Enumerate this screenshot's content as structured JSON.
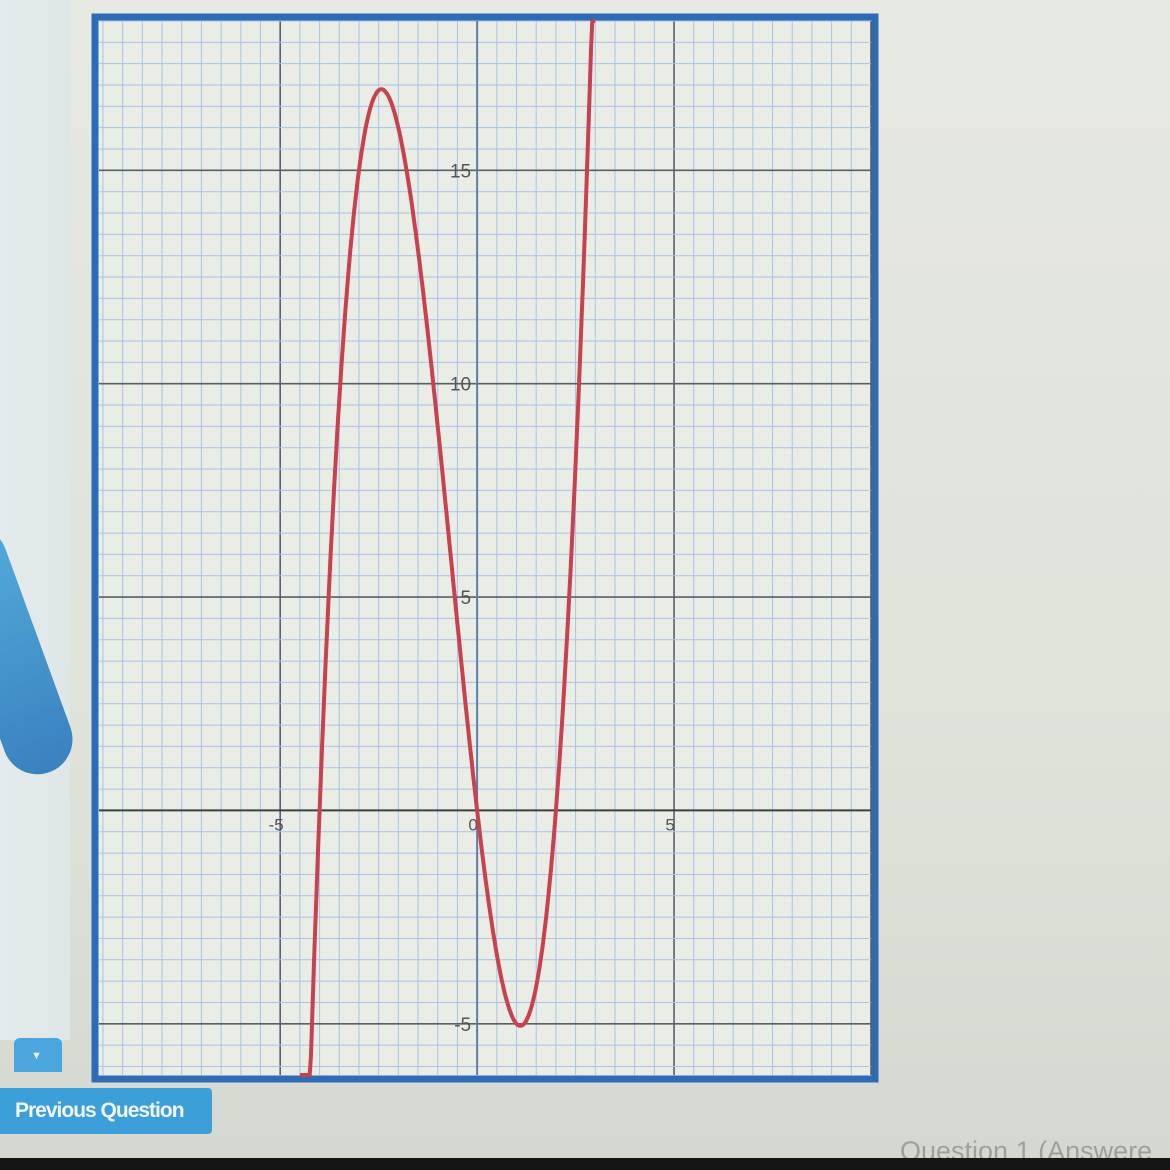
{
  "navigation": {
    "dropdown_icon": "triangle-down-icon",
    "previous_button_label": "Previous Question",
    "question_status": "Question 1 (Answere"
  },
  "colors": {
    "curve": "#c9404f",
    "button": "#3d9fd9",
    "frame": "#2e6bb5"
  },
  "chart_data": {
    "type": "line",
    "title": "",
    "xlabel": "",
    "ylabel": "",
    "xlim": [
      -9.6,
      10
    ],
    "ylim": [
      -6.2,
      18.5
    ],
    "grid": true,
    "x_ticks": [
      -5,
      0,
      5
    ],
    "x_tick_labels": [
      "-5",
      "0",
      "5"
    ],
    "y_ticks": [
      -5,
      5,
      10,
      15
    ],
    "y_tick_labels": [
      "-5",
      "5",
      "10",
      "15"
    ],
    "series": [
      {
        "x": [
          -4.5,
          -4.25,
          -4,
          -3.75,
          -3.5,
          -3.25,
          -3,
          -2.75,
          -2.5,
          -2.25,
          -2,
          -1.75,
          -1.5,
          -1.25,
          -1,
          -0.75,
          -0.5,
          -0.25,
          0,
          0.25,
          0.5,
          0.75,
          1,
          1.25,
          1.5,
          1.75,
          2,
          2.25,
          2.5,
          2.75,
          3
        ],
        "y": [
          -14.625,
          -6.641,
          0,
          5.391,
          9.625,
          12.797,
          15,
          16.328,
          16.875,
          16.734,
          16,
          14.766,
          13.125,
          11.172,
          9,
          6.703,
          4.375,
          2.109,
          0,
          -1.859,
          -3.375,
          -4.453,
          -5,
          -4.922,
          -4.125,
          -2.516,
          0,
          3.516,
          8.125,
          13.922,
          21
        ]
      }
    ]
  }
}
